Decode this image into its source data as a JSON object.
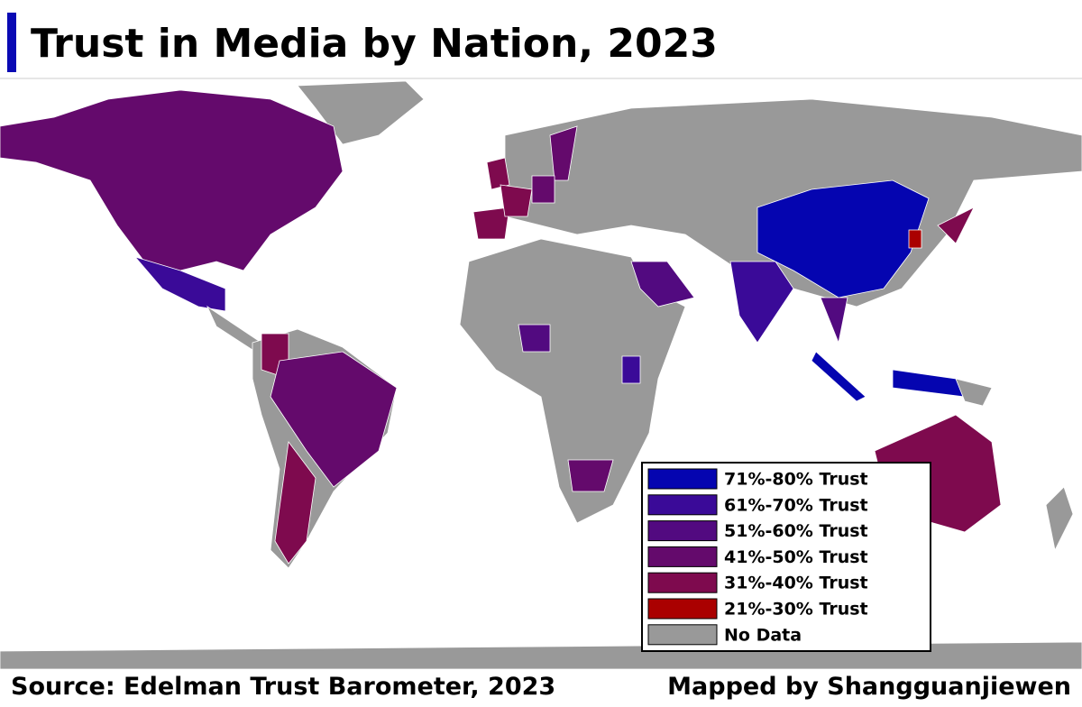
{
  "header": {
    "title": "Trust in Media by Nation, 2023"
  },
  "legend": {
    "items": [
      {
        "label": "71%-80%  Trust",
        "color": "#0505b0"
      },
      {
        "label": "61%-70%  Trust",
        "color": "#3a0a98"
      },
      {
        "label": "51%-60%  Trust",
        "color": "#520a80"
      },
      {
        "label": "41%-50%  Trust",
        "color": "#640a6c"
      },
      {
        "label": "31%-40%  Trust",
        "color": "#7e0a4e"
      },
      {
        "label": "21%-30%  Trust",
        "color": "#aa0000"
      },
      {
        "label": "No Data",
        "color": "#999999"
      }
    ]
  },
  "footer": {
    "source": "Source: Edelman Trust Barometer, 2023",
    "credit": "Mapped by Shangguanjiewen"
  }
}
